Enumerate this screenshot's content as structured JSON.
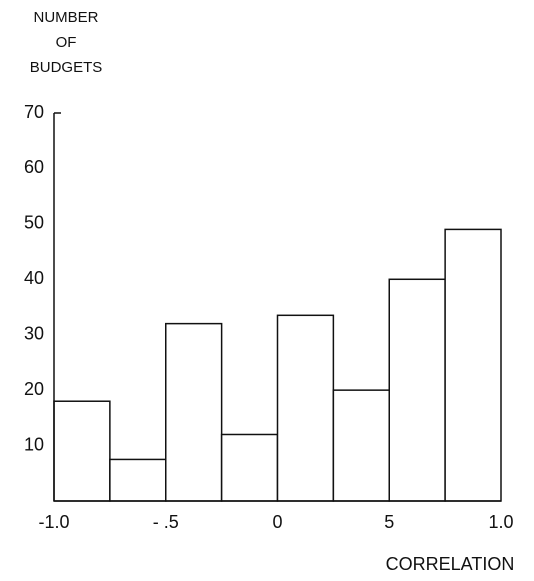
{
  "chart_data": {
    "type": "histogram",
    "ylabel": [
      "NUMBER",
      "OF",
      "BUDGETS"
    ],
    "xlabel": "CORRELATION",
    "bins": [
      -1.0,
      -0.75,
      -0.5,
      -0.25,
      0,
      0.25,
      0.5,
      0.75,
      1.0
    ],
    "values": [
      18,
      7.5,
      32,
      12,
      33.5,
      20,
      40,
      49
    ],
    "color": "#ffffff",
    "xlim": [
      -1.0,
      1.0
    ],
    "xticks": [
      {
        "value": -1.0,
        "label": "-1.0"
      },
      {
        "value": -0.5,
        "label": "- .5"
      },
      0,
      {
        "value": 0.5,
        "label": "5"
      },
      {
        "value": 1.0,
        "label": "1.0"
      }
    ],
    "ylim": [
      0,
      70
    ],
    "yticks": [
      10,
      20,
      30,
      40,
      50,
      60,
      70
    ]
  }
}
